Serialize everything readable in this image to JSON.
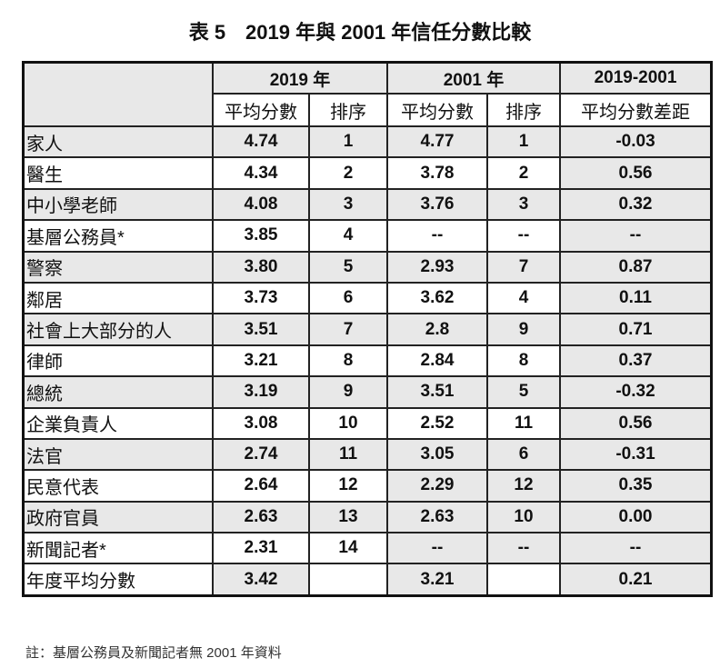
{
  "title": "表 5　2019 年與 2001 年信任分數比較",
  "headers": {
    "y2019": "2019 年",
    "y2001": "2001 年",
    "diff": "2019-2001",
    "avg": "平均分數",
    "rank": "排序",
    "avg2": "平均分數",
    "rank2": "排序",
    "gap": "平均分數差距"
  },
  "rows": [
    {
      "label": "家人",
      "a19": "4.74",
      "r19": "1",
      "a01": "4.77",
      "r01": "1",
      "d": "-0.03"
    },
    {
      "label": "醫生",
      "a19": "4.34",
      "r19": "2",
      "a01": "3.78",
      "r01": "2",
      "d": "0.56"
    },
    {
      "label": "中小學老師",
      "a19": "4.08",
      "r19": "3",
      "a01": "3.76",
      "r01": "3",
      "d": "0.32"
    },
    {
      "label": "基層公務員*",
      "a19": "3.85",
      "r19": "4",
      "a01": "--",
      "r01": "--",
      "d": "--"
    },
    {
      "label": "警察",
      "a19": "3.80",
      "r19": "5",
      "a01": "2.93",
      "r01": "7",
      "d": "0.87"
    },
    {
      "label": "鄰居",
      "a19": "3.73",
      "r19": "6",
      "a01": "3.62",
      "r01": "4",
      "d": "0.11"
    },
    {
      "label": "社會上大部分的人",
      "a19": "3.51",
      "r19": "7",
      "a01": "2.8",
      "r01": "9",
      "d": "0.71"
    },
    {
      "label": "律師",
      "a19": "3.21",
      "r19": "8",
      "a01": "2.84",
      "r01": "8",
      "d": "0.37"
    },
    {
      "label": "總統",
      "a19": "3.19",
      "r19": "9",
      "a01": "3.51",
      "r01": "5",
      "d": "-0.32"
    },
    {
      "label": "企業負責人",
      "a19": "3.08",
      "r19": "10",
      "a01": "2.52",
      "r01": "11",
      "d": "0.56"
    },
    {
      "label": "法官",
      "a19": "2.74",
      "r19": "11",
      "a01": "3.05",
      "r01": "6",
      "d": "-0.31"
    },
    {
      "label": "民意代表",
      "a19": "2.64",
      "r19": "12",
      "a01": "2.29",
      "r01": "12",
      "d": "0.35"
    },
    {
      "label": "政府官員",
      "a19": "2.63",
      "r19": "13",
      "a01": "2.63",
      "r01": "10",
      "d": "0.00"
    },
    {
      "label": "新聞記者*",
      "a19": "2.31",
      "r19": "14",
      "a01": "--",
      "r01": "--",
      "d": "--"
    },
    {
      "label": "年度平均分數",
      "a19": "3.42",
      "r19": "",
      "a01": "3.21",
      "r01": "",
      "d": "0.21"
    }
  ],
  "note": "註：基層公務員及新聞記者無 2001 年資料",
  "colors": {
    "shade": "#e8e8e8"
  }
}
